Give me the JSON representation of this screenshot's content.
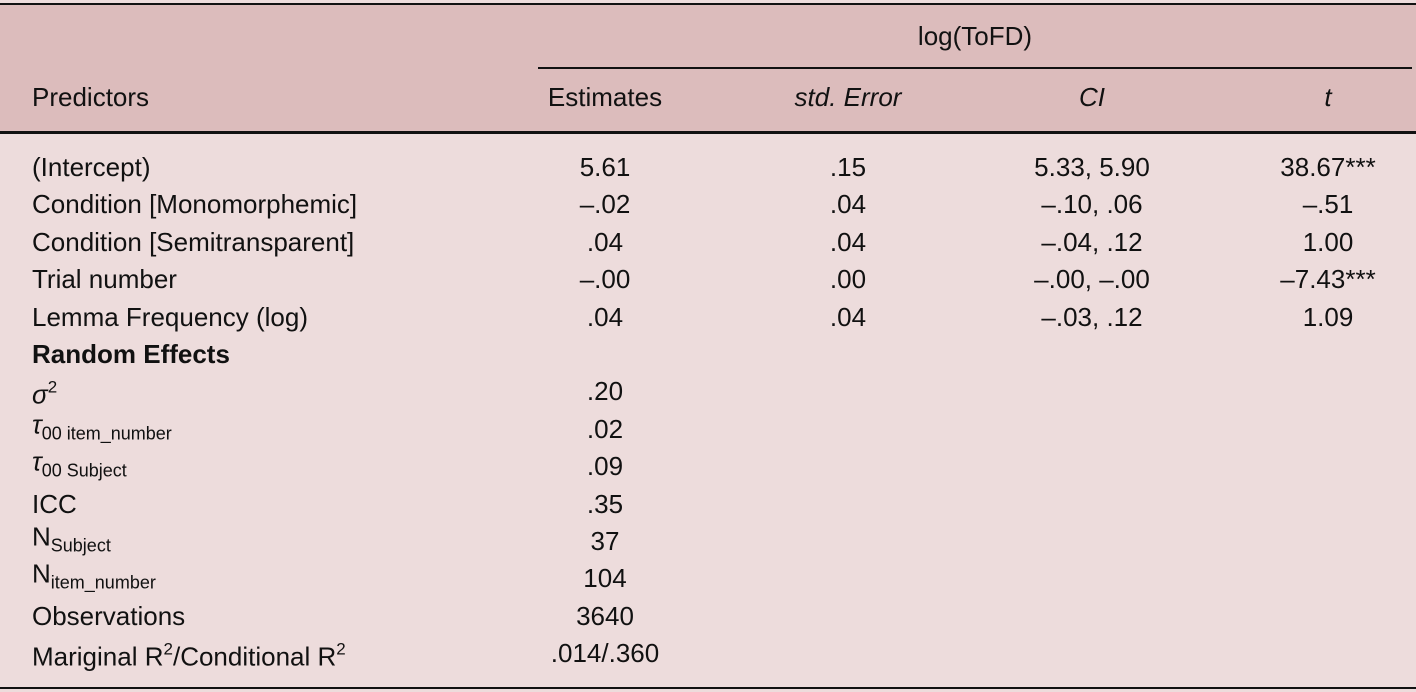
{
  "header": {
    "group": "log(ToFD)",
    "columns": [
      "Predictors",
      "Estimates",
      "std. Error",
      "CI",
      "t"
    ],
    "column_styles": [
      "normal",
      "normal",
      "italic",
      "italic",
      "italic"
    ]
  },
  "fixed_effects": {
    "rows": [
      [
        "(Intercept)",
        "5.61",
        ".15",
        "5.33, 5.90",
        "38.67***"
      ],
      [
        "Condition [Monomorphemic]",
        "–.02",
        ".04",
        "–.10, .06",
        "–.51"
      ],
      [
        "Condition [Semitransparent]",
        ".04",
        ".04",
        "–.04, .12",
        "1.00"
      ],
      [
        "Trial number",
        "–.00",
        ".00",
        "–.00, –.00",
        "–7.43***"
      ],
      [
        "Lemma Frequency (log)",
        ".04",
        ".04",
        "–.03, .12",
        "1.09"
      ]
    ]
  },
  "random_effects": {
    "title": "Random Effects",
    "rows": [
      {
        "label": [
          {
            "text": "σ",
            "style": "italic"
          },
          {
            "text": "2",
            "style": "sup"
          }
        ],
        "value": ".20"
      },
      {
        "label": [
          {
            "text": "τ",
            "style": "italic"
          },
          {
            "text": "00 item_number",
            "style": "sub"
          }
        ],
        "value": ".02"
      },
      {
        "label": [
          {
            "text": "τ",
            "style": "italic"
          },
          {
            "text": "00 Subject",
            "style": "sub"
          }
        ],
        "value": ".09"
      },
      {
        "label": [
          {
            "text": "ICC",
            "style": "normal"
          }
        ],
        "value": ".35"
      },
      {
        "label": [
          {
            "text": "N",
            "style": "normal"
          },
          {
            "text": "Subject",
            "style": "sub"
          }
        ],
        "value": "37"
      },
      {
        "label": [
          {
            "text": "N",
            "style": "normal"
          },
          {
            "text": "item_number",
            "style": "sub"
          }
        ],
        "value": "104"
      },
      {
        "label": [
          {
            "text": "Observations",
            "style": "normal"
          }
        ],
        "value": "3640"
      },
      {
        "label": [
          {
            "text": "Mariginal R",
            "style": "normal"
          },
          {
            "text": "2",
            "style": "sup"
          },
          {
            "text": "/Conditional R",
            "style": "normal"
          },
          {
            "text": "2",
            "style": "sup"
          }
        ],
        "value": ".014/.360"
      }
    ]
  }
}
